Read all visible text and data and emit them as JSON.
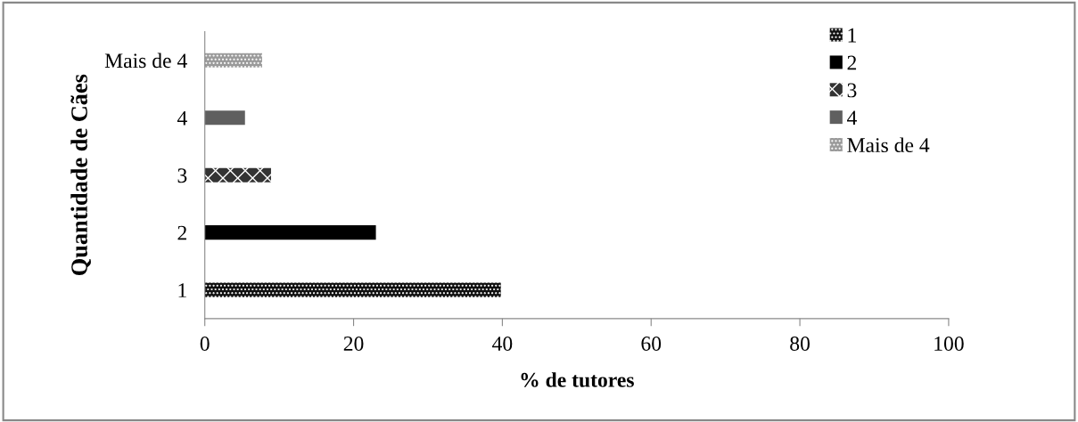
{
  "chart_data": {
    "type": "bar",
    "orientation": "horizontal",
    "xlabel": "% de tutores",
    "ylabel": "Quantidade de Cães",
    "categories": [
      "Mais de 4",
      "4",
      "3",
      "2",
      "1"
    ],
    "series": [
      {
        "name": "1",
        "color": "#111111",
        "values": [
          null,
          null,
          null,
          null,
          39.8
        ]
      },
      {
        "name": "2",
        "color": "#000000",
        "values": [
          null,
          null,
          null,
          23.0,
          null
        ]
      },
      {
        "name": "3",
        "color": "#333333",
        "values": [
          null,
          null,
          8.9,
          null,
          null
        ]
      },
      {
        "name": "4",
        "color": "#5f5f5f",
        "values": [
          null,
          5.4,
          null,
          null,
          null
        ]
      },
      {
        "name": "Mais de 4",
        "color": "#9a9a9a",
        "values": [
          7.7,
          null,
          null,
          null,
          null
        ]
      }
    ],
    "xlim": [
      0,
      100
    ],
    "xticks": [
      0,
      20,
      40,
      60,
      80,
      100
    ],
    "grid": false,
    "legend": "top right"
  }
}
